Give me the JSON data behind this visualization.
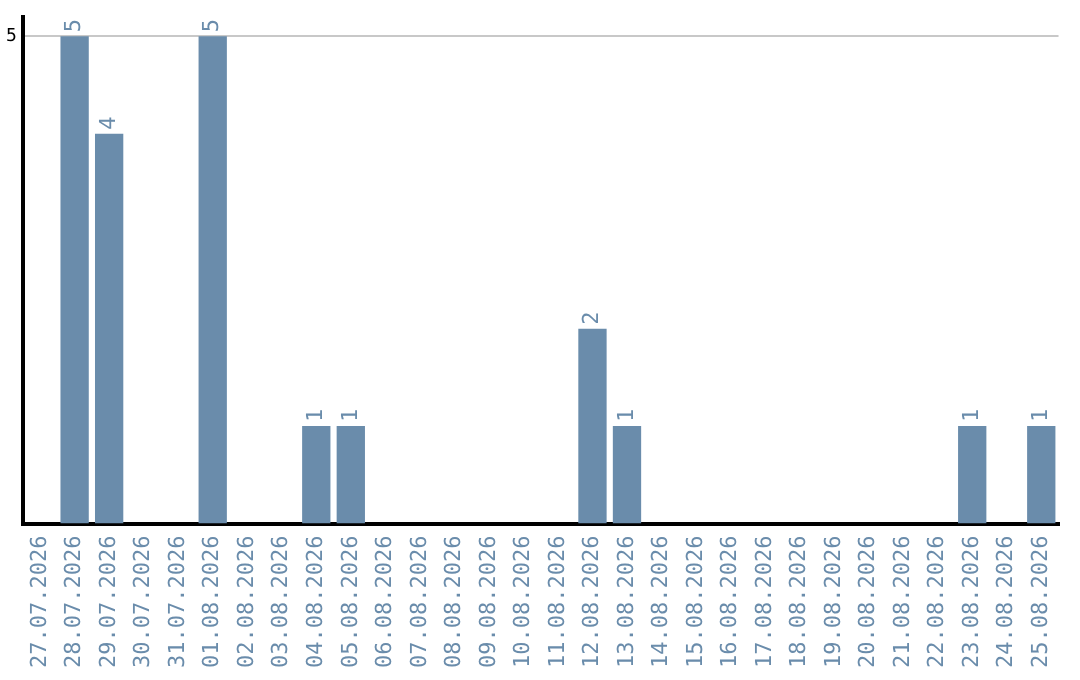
{
  "chart_data": {
    "type": "bar",
    "categories": [
      "27.07.2026",
      "28.07.2026",
      "29.07.2026",
      "30.07.2026",
      "31.07.2026",
      "01.08.2026",
      "02.08.2026",
      "03.08.2026",
      "04.08.2026",
      "05.08.2026",
      "06.08.2026",
      "07.08.2026",
      "08.08.2026",
      "09.08.2026",
      "10.08.2026",
      "11.08.2026",
      "12.08.2026",
      "13.08.2026",
      "14.08.2026",
      "15.08.2026",
      "16.08.2026",
      "17.08.2026",
      "18.08.2026",
      "19.08.2026",
      "20.08.2026",
      "21.08.2026",
      "22.08.2026",
      "23.08.2026",
      "24.08.2026",
      "25.08.2026"
    ],
    "values": [
      0,
      5,
      4,
      0,
      0,
      5,
      0,
      0,
      1,
      1,
      0,
      0,
      0,
      0,
      0,
      0,
      2,
      1,
      0,
      0,
      0,
      0,
      0,
      0,
      0,
      0,
      0,
      1,
      0,
      1
    ],
    "value_labels": [
      null,
      "5",
      "4",
      null,
      null,
      "5",
      null,
      null,
      "1",
      "1",
      null,
      null,
      null,
      null,
      null,
      null,
      "2",
      "1",
      null,
      null,
      null,
      null,
      null,
      null,
      null,
      null,
      null,
      "1",
      null,
      "1"
    ],
    "color": "#6a8cab",
    "ylim": [
      0,
      5.2
    ],
    "yticks": [
      5
    ],
    "grid": "y",
    "legend": false
  }
}
